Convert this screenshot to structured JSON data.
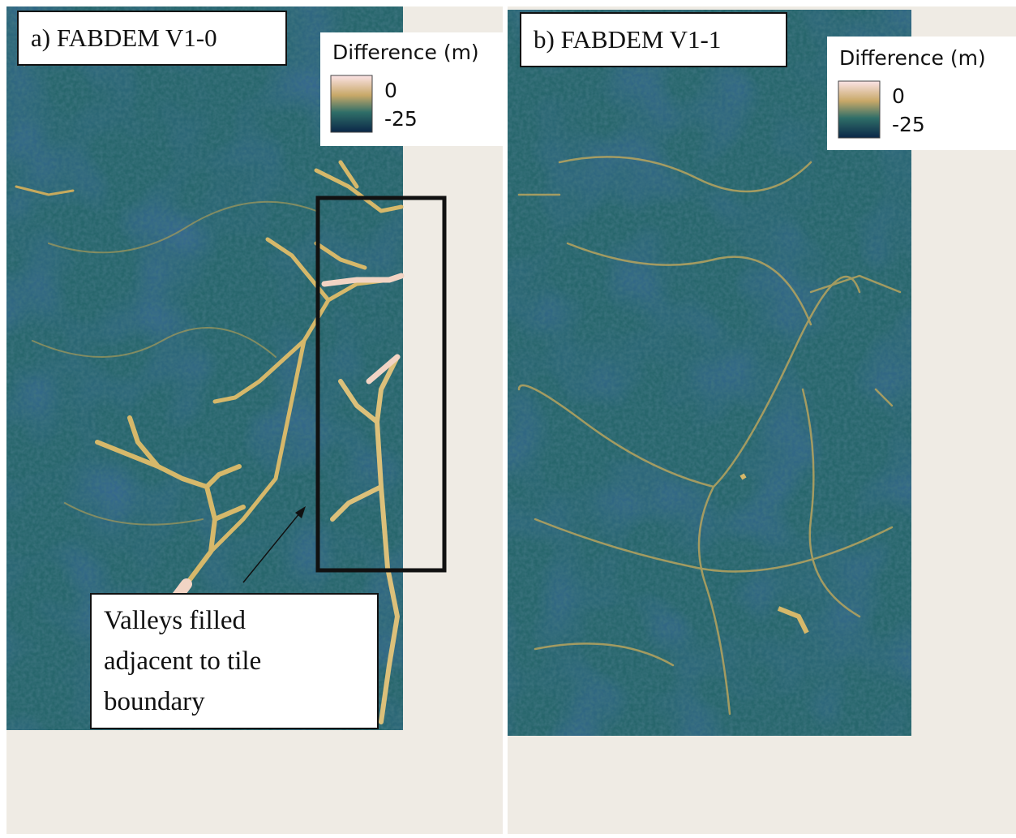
{
  "panels": [
    {
      "title": "a) FABDEM V1-0",
      "legend": {
        "title": "Difference (m)",
        "labels": [
          0,
          -25
        ]
      },
      "annotation": [
        "Valleys filled",
        "adjacent to tile",
        "boundary"
      ]
    },
    {
      "title": "b) FABDEM V1-1",
      "legend": {
        "title": "Difference (m)",
        "labels": [
          0,
          -25
        ]
      }
    }
  ]
}
